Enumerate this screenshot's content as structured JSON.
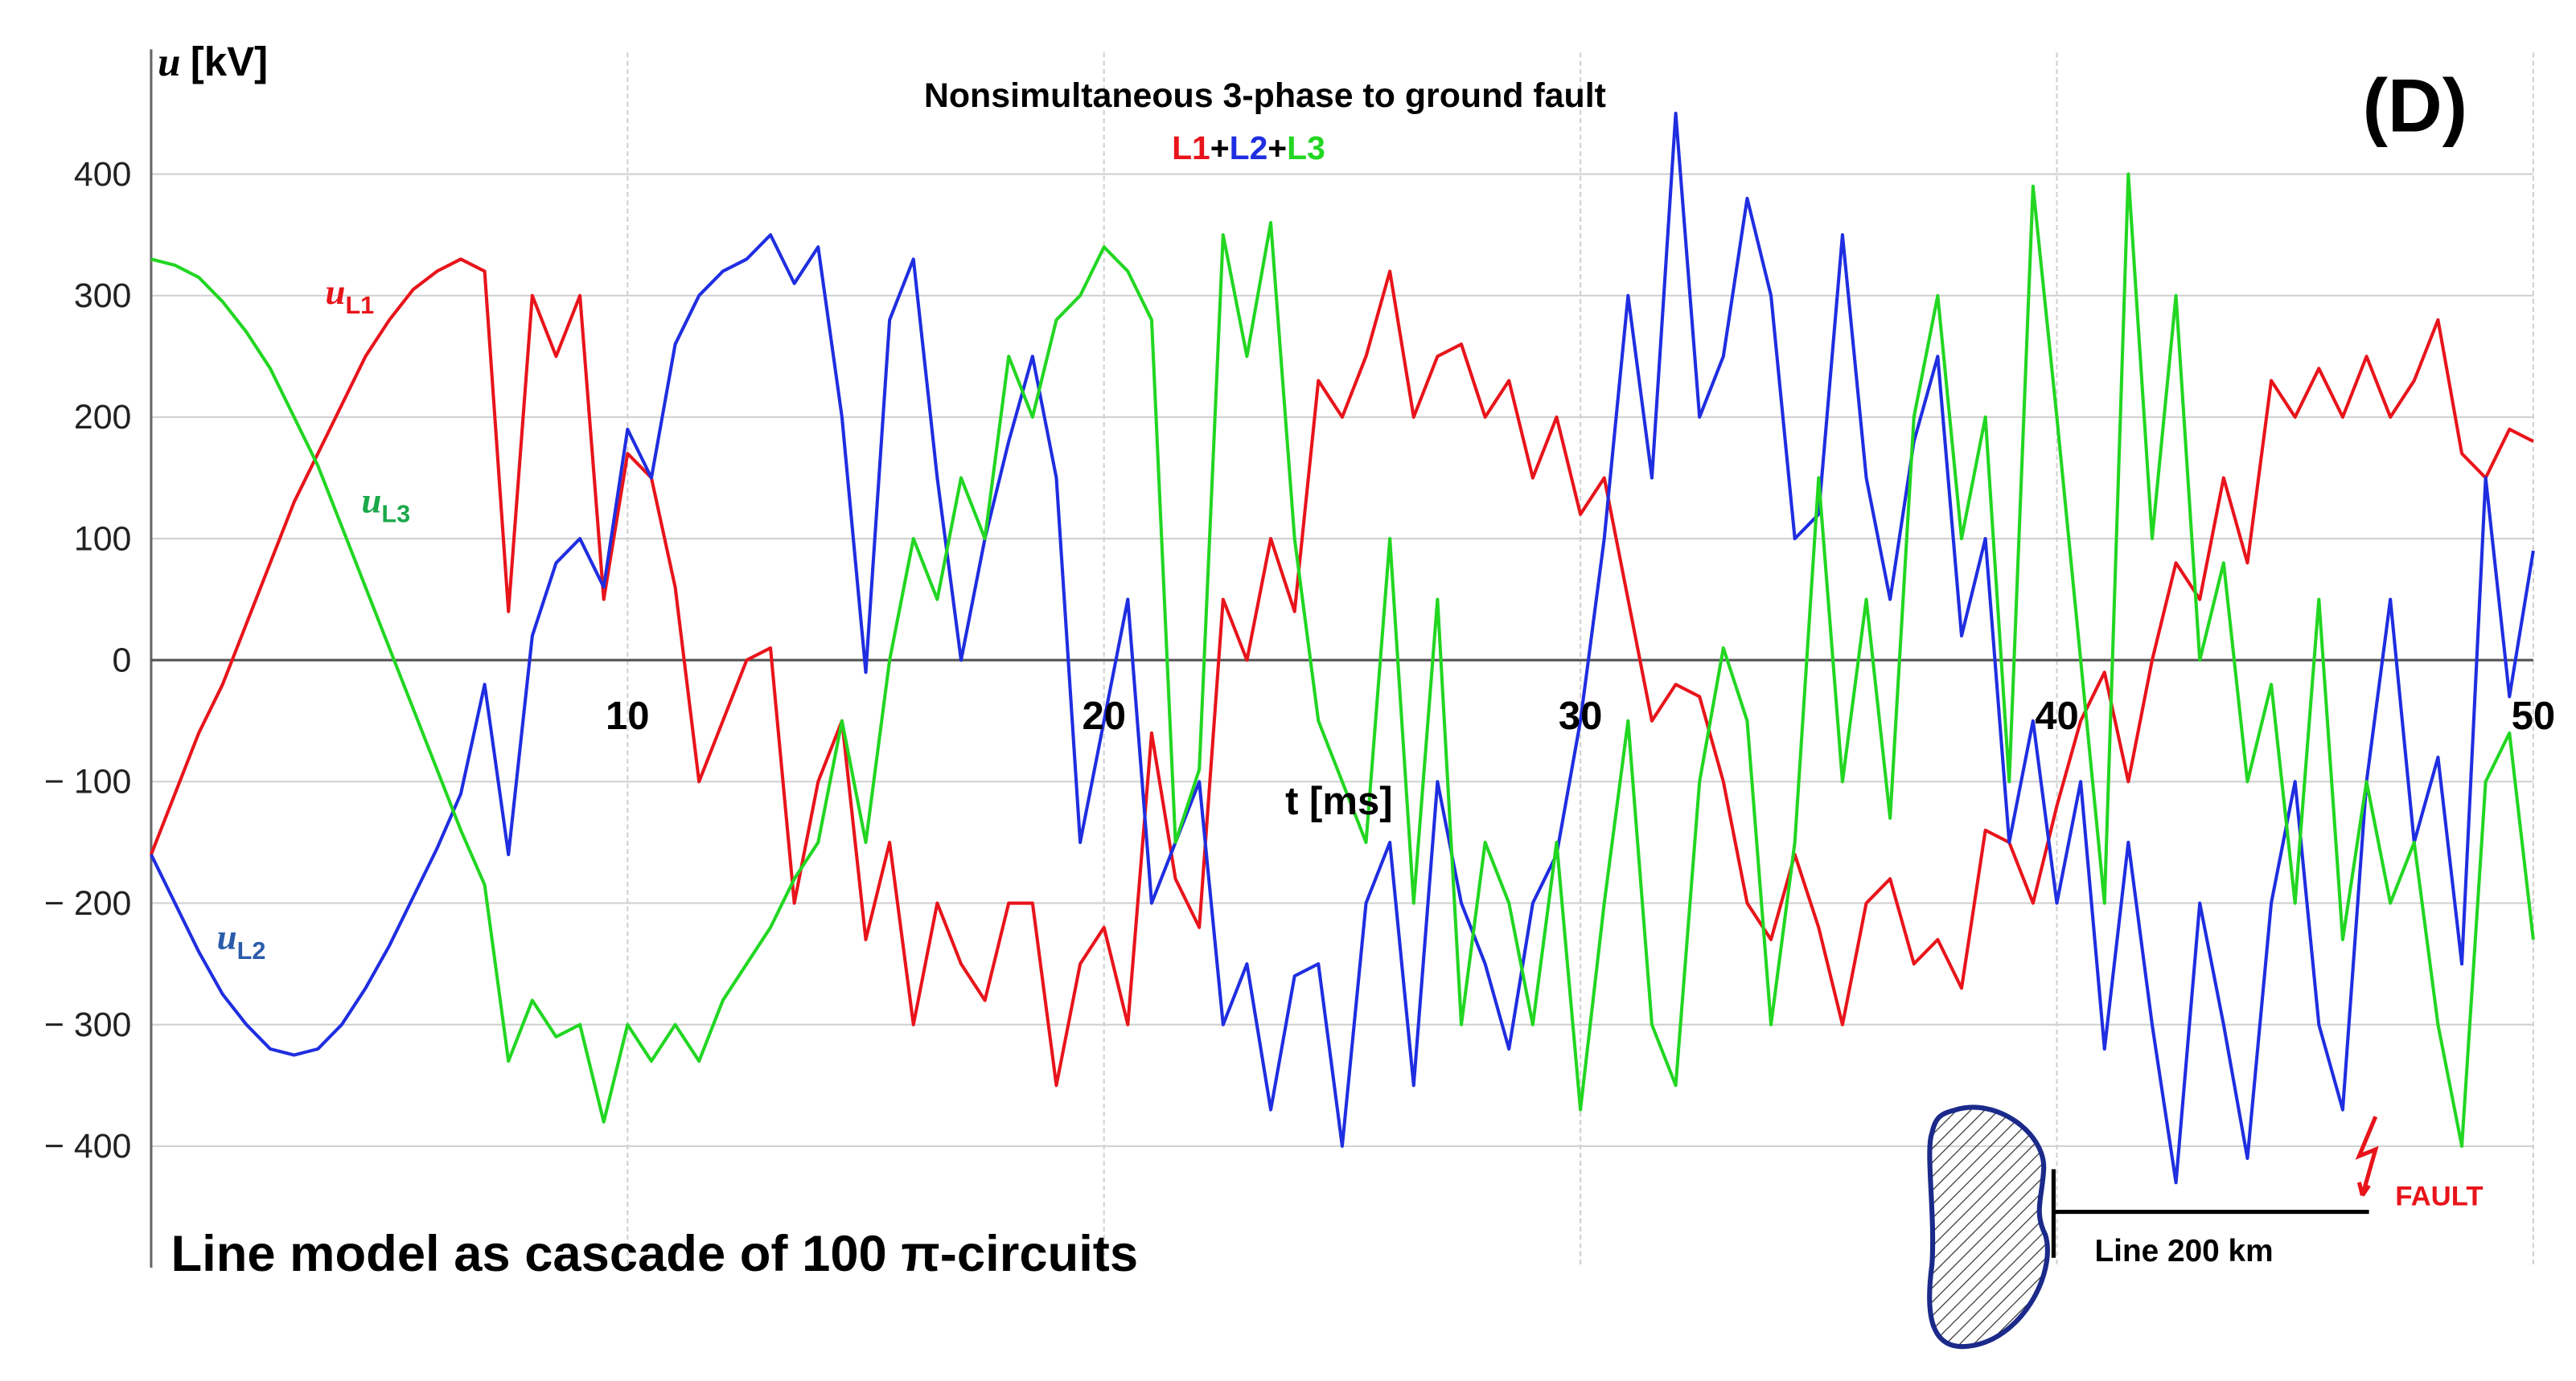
{
  "chart_data": {
    "type": "line",
    "title": "Nonsimultaneous 3-phase to ground fault",
    "legend_separator": "+",
    "panel_label": "(D)",
    "y_label": {
      "symbol": "u",
      "unit": "[kV]"
    },
    "x_label": "t [ms]",
    "caption": "Line model as cascade of 100 π-circuits",
    "diagram": {
      "line_label": "Line 200 km",
      "fault_label": "FAULT"
    },
    "annotations": [
      {
        "symbol": "u",
        "sub": "L1",
        "color": "#e8141b"
      },
      {
        "symbol": "u",
        "sub": "L3",
        "color": "#1aa84a"
      },
      {
        "symbol": "u",
        "sub": "L2",
        "color": "#2a5caa"
      }
    ],
    "xlim": [
      0,
      50
    ],
    "ylim": [
      -500,
      500
    ],
    "xticks": [
      10,
      20,
      30,
      40,
      50
    ],
    "yticks": [
      400,
      300,
      200,
      100,
      0,
      {
        "value": -100,
        "label": "− 100"
      },
      {
        "value": -200,
        "label": "− 200"
      },
      {
        "value": -300,
        "label": "− 300"
      },
      {
        "value": -400,
        "label": "− 400"
      }
    ],
    "grid": true,
    "x": [
      0,
      0.5,
      1,
      1.5,
      2,
      2.5,
      3,
      3.5,
      4,
      4.5,
      5,
      5.5,
      6,
      6.5,
      7,
      7.5,
      8,
      8.5,
      9,
      9.5,
      10,
      10.5,
      11,
      11.5,
      12,
      12.5,
      13,
      13.5,
      14,
      14.5,
      15,
      15.5,
      16,
      16.5,
      17,
      17.5,
      18,
      18.5,
      19,
      19.5,
      20,
      20.5,
      21,
      21.5,
      22,
      22.5,
      23,
      23.5,
      24,
      24.5,
      25,
      25.5,
      26,
      26.5,
      27,
      27.5,
      28,
      28.5,
      29,
      29.5,
      30,
      30.5,
      31,
      31.5,
      32,
      32.5,
      33,
      33.5,
      34,
      34.5,
      35,
      35.5,
      36,
      36.5,
      37,
      37.5,
      38,
      38.5,
      39,
      39.5,
      40,
      40.5,
      41,
      41.5,
      42,
      42.5,
      43,
      43.5,
      44,
      44.5,
      45,
      45.5,
      46,
      46.5,
      47,
      47.5,
      48,
      48.5,
      49,
      49.5,
      50
    ],
    "series": [
      {
        "name": "L1",
        "color": "#e8141b",
        "values": [
          -160,
          -110,
          -60,
          -20,
          30,
          80,
          130,
          170,
          210,
          250,
          280,
          305,
          320,
          330,
          320,
          40,
          300,
          250,
          300,
          50,
          170,
          150,
          60,
          -100,
          -50,
          0,
          10,
          -200,
          -100,
          -50,
          -230,
          -150,
          -300,
          -200,
          -250,
          -280,
          -200,
          -200,
          -350,
          -250,
          -220,
          -300,
          -60,
          -180,
          -220,
          50,
          0,
          100,
          40,
          230,
          200,
          250,
          320,
          200,
          250,
          260,
          200,
          230,
          150,
          200,
          120,
          150,
          50,
          -50,
          -20,
          -30,
          -100,
          -200,
          -230,
          -160,
          -220,
          -300,
          -200,
          -180,
          -250,
          -230,
          -270,
          -140,
          -150,
          -200,
          -120,
          -50,
          -10,
          -100,
          0,
          80,
          50,
          150,
          80,
          230,
          200,
          240,
          200,
          250,
          200,
          230,
          280,
          170,
          150,
          190,
          180
        ]
      },
      {
        "name": "L2",
        "color": "#1f2ee0",
        "values": [
          -160,
          -200,
          -240,
          -275,
          -300,
          -320,
          -325,
          -320,
          -300,
          -270,
          -235,
          -195,
          -155,
          -110,
          -20,
          -160,
          20,
          80,
          100,
          60,
          190,
          150,
          260,
          300,
          320,
          330,
          350,
          310,
          340,
          200,
          -10,
          280,
          330,
          150,
          0,
          100,
          180,
          250,
          150,
          -150,
          -50,
          50,
          -200,
          -150,
          -100,
          -300,
          -250,
          -370,
          -260,
          -250,
          -400,
          -200,
          -150,
          -350,
          -100,
          -200,
          -250,
          -320,
          -200,
          -160,
          -50,
          100,
          300,
          150,
          450,
          200,
          250,
          380,
          300,
          100,
          120,
          350,
          150,
          50,
          180,
          250,
          20,
          100,
          -150,
          -50,
          -200,
          -100,
          -320,
          -150,
          -300,
          -430,
          -200,
          -300,
          -410,
          -200,
          -100,
          -300,
          -370,
          -100,
          50,
          -150,
          -80,
          -250,
          150,
          -30,
          90
        ]
      },
      {
        "name": "L3",
        "color": "#22d622",
        "values": [
          330,
          325,
          315,
          295,
          270,
          240,
          200,
          160,
          110,
          60,
          10,
          -40,
          -90,
          -140,
          -185,
          -330,
          -280,
          -310,
          -300,
          -380,
          -300,
          -330,
          -300,
          -330,
          -280,
          -250,
          -220,
          -180,
          -150,
          -50,
          -150,
          0,
          100,
          50,
          150,
          100,
          250,
          200,
          280,
          300,
          340,
          320,
          280,
          -150,
          -90,
          350,
          250,
          360,
          100,
          -50,
          -100,
          -150,
          100,
          -200,
          50,
          -300,
          -150,
          -200,
          -300,
          -150,
          -370,
          -200,
          -50,
          -300,
          -350,
          -100,
          10,
          -50,
          -300,
          -150,
          150,
          -100,
          50,
          -130,
          200,
          300,
          100,
          200,
          -100,
          390,
          200,
          0,
          -200,
          400,
          100,
          300,
          0,
          80,
          -100,
          -20,
          -200,
          50,
          -230,
          -100,
          -200,
          -150,
          -300,
          -400,
          -100,
          -60,
          -230
        ]
      }
    ]
  }
}
